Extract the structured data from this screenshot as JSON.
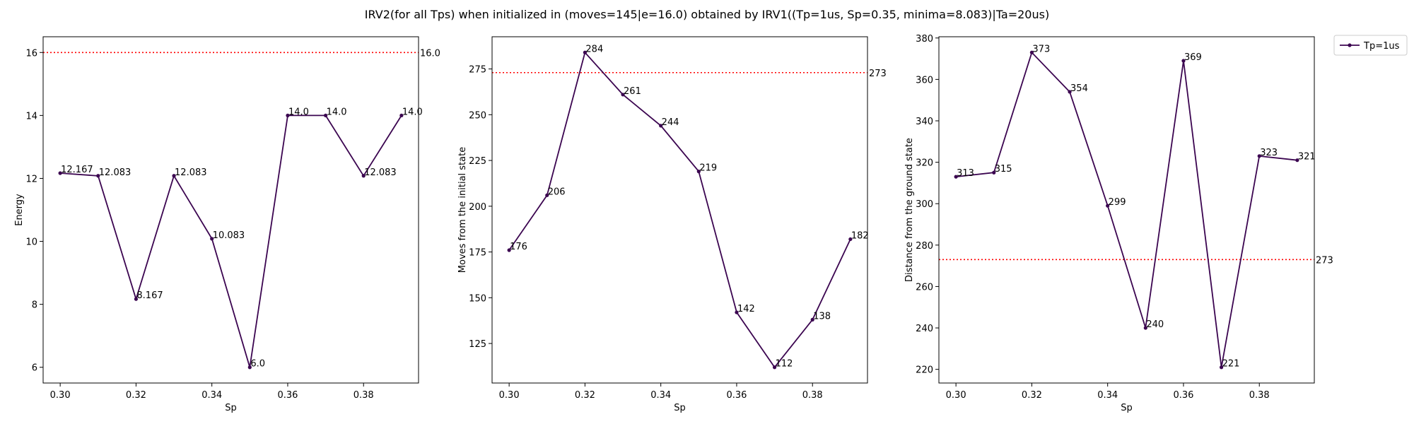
{
  "title": "IRV2(for all Tps) when initialized in (moves=145|e=16.0) obtained by IRV1((Tp=1us, Sp=0.35, minima=8.083)|Ta=20us)",
  "colors": {
    "series": "#3b0550",
    "reference": "#ff0000",
    "axis": "#000000"
  },
  "legend": {
    "placement": "outside-top-right",
    "entries": [
      "Tp=1us"
    ]
  },
  "chart_data": [
    {
      "type": "line",
      "xlabel": "Sp",
      "ylabel": "Energy",
      "x": [
        0.3,
        0.31,
        0.32,
        0.33,
        0.34,
        0.35,
        0.36,
        0.37,
        0.38,
        0.39
      ],
      "series": [
        {
          "name": "Tp=1us",
          "values": [
            12.167,
            12.083,
            8.167,
            12.083,
            10.083,
            6.0,
            14.0,
            14.0,
            12.083,
            14.0
          ],
          "labels": [
            "12.167",
            "12.083",
            "8.167",
            "12.083",
            "10.083",
            "6.0",
            "14.0",
            "14.0",
            "12.083",
            "14.0"
          ]
        }
      ],
      "reference_line": {
        "value": 16.0,
        "label": "16.0",
        "style": "dotted"
      },
      "xlim": [
        0.2955,
        0.3945
      ],
      "ylim": [
        5.5,
        16.5
      ],
      "xticks": [
        0.3,
        0.32,
        0.34,
        0.36,
        0.38
      ],
      "xtick_labels": [
        "0.30",
        "0.32",
        "0.34",
        "0.36",
        "0.38"
      ],
      "yticks": [
        6,
        8,
        10,
        12,
        14,
        16
      ],
      "ytick_labels": [
        "6",
        "8",
        "10",
        "12",
        "14",
        "16"
      ],
      "grid": false
    },
    {
      "type": "line",
      "xlabel": "Sp",
      "ylabel": "Moves from the initial state",
      "x": [
        0.3,
        0.31,
        0.32,
        0.33,
        0.34,
        0.35,
        0.36,
        0.37,
        0.38,
        0.39
      ],
      "series": [
        {
          "name": "Tp=1us",
          "values": [
            176,
            206,
            284,
            261,
            244,
            219,
            142,
            112,
            138,
            182
          ],
          "labels": [
            "176",
            "206",
            "284",
            "261",
            "244",
            "219",
            "142",
            "112",
            "138",
            "182"
          ]
        }
      ],
      "reference_line": {
        "value": 273,
        "label": "273",
        "style": "dotted"
      },
      "xlim": [
        0.2955,
        0.3945
      ],
      "ylim": [
        103.4,
        292.6
      ],
      "xticks": [
        0.3,
        0.32,
        0.34,
        0.36,
        0.38
      ],
      "xtick_labels": [
        "0.30",
        "0.32",
        "0.34",
        "0.36",
        "0.38"
      ],
      "yticks": [
        125,
        150,
        175,
        200,
        225,
        250,
        275
      ],
      "ytick_labels": [
        "125",
        "150",
        "175",
        "200",
        "225",
        "250",
        "275"
      ],
      "grid": false
    },
    {
      "type": "line",
      "xlabel": "Sp",
      "ylabel": "Distance from the ground state",
      "x": [
        0.3,
        0.31,
        0.32,
        0.33,
        0.34,
        0.35,
        0.36,
        0.37,
        0.38,
        0.39
      ],
      "series": [
        {
          "name": "Tp=1us",
          "values": [
            313,
            315,
            373,
            354,
            299,
            240,
            369,
            221,
            323,
            321
          ],
          "labels": [
            "313",
            "315",
            "373",
            "354",
            "299",
            "240",
            "369",
            "221",
            "323",
            "321"
          ]
        }
      ],
      "reference_line": {
        "value": 273,
        "label": "273",
        "style": "dotted"
      },
      "xlim": [
        0.2955,
        0.3945
      ],
      "ylim": [
        213.4,
        380.6
      ],
      "xticks": [
        0.3,
        0.32,
        0.34,
        0.36,
        0.38
      ],
      "xtick_labels": [
        "0.30",
        "0.32",
        "0.34",
        "0.36",
        "0.38"
      ],
      "yticks": [
        220,
        240,
        260,
        280,
        300,
        320,
        340,
        360,
        380
      ],
      "ytick_labels": [
        "220",
        "240",
        "260",
        "280",
        "300",
        "320",
        "340",
        "360",
        "380"
      ],
      "grid": false
    }
  ]
}
